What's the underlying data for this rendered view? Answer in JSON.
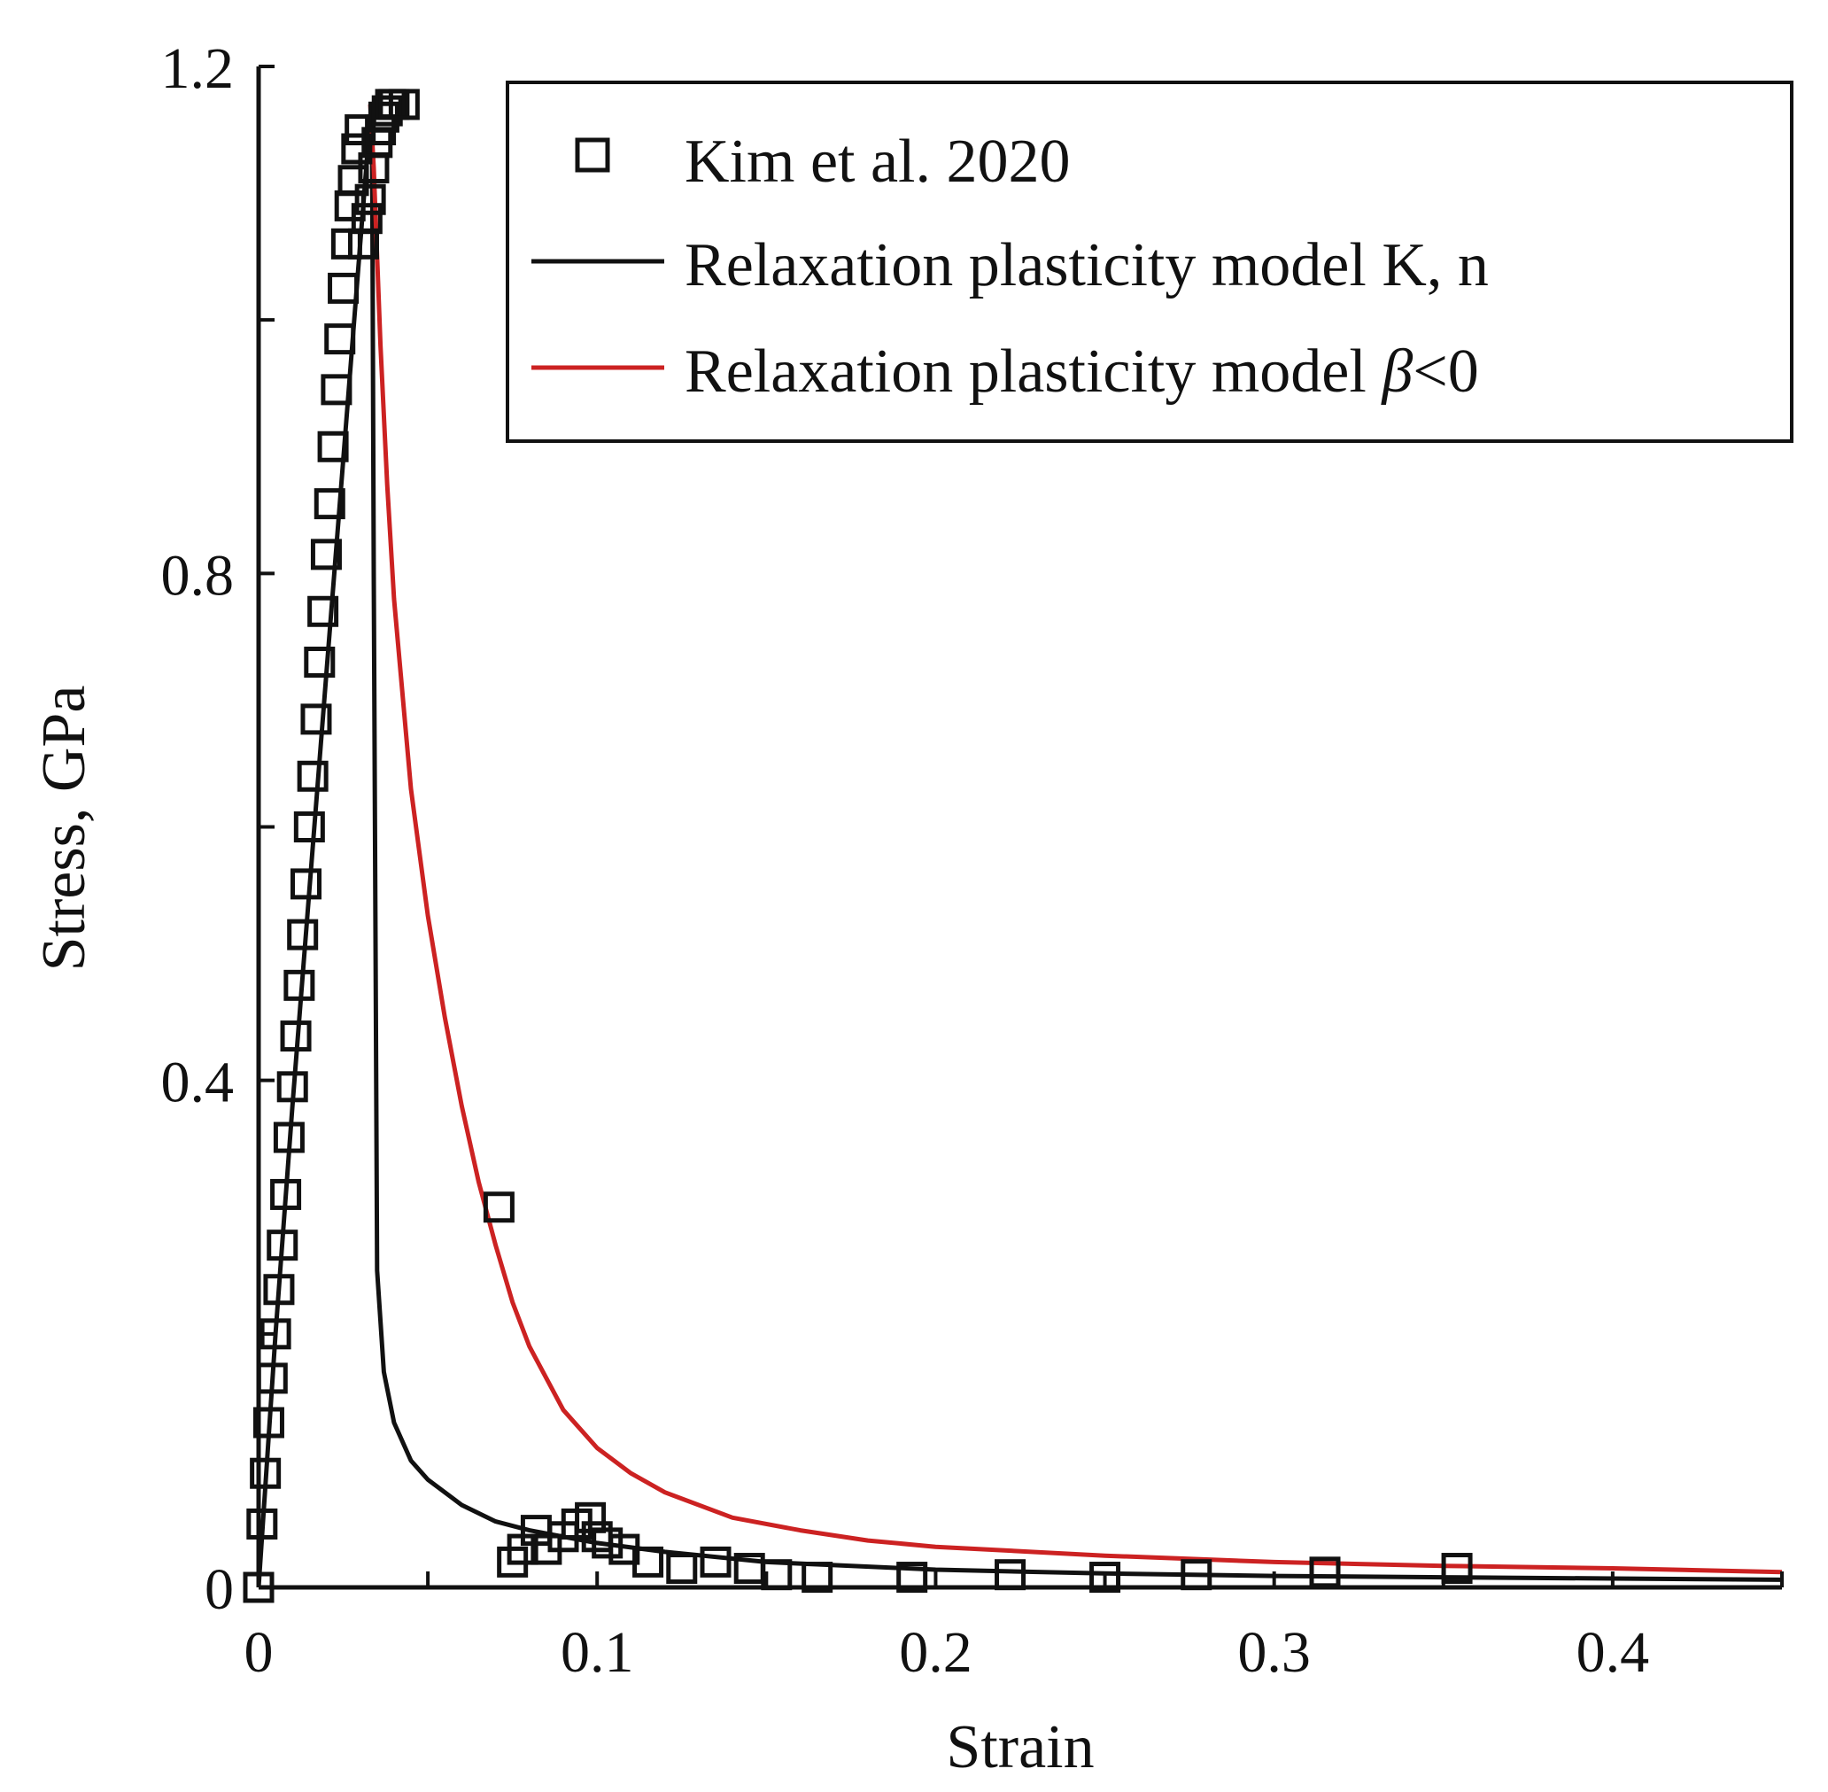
{
  "chart_data": {
    "type": "scatter",
    "title": "",
    "xlabel": "Strain",
    "ylabel": "Stress, GPa",
    "xlim": [
      0,
      0.45
    ],
    "ylim": [
      0,
      1.2
    ],
    "x_ticks": [
      0,
      0.1,
      0.2,
      0.3,
      0.4
    ],
    "x_tick_labels": [
      "0",
      "0.1",
      "0.2",
      "0.3",
      "0.4"
    ],
    "y_ticks": [
      0,
      0.4,
      0.8,
      1.2
    ],
    "y_tick_labels": [
      "0",
      "0.4",
      "0.8",
      "1.2"
    ],
    "grid": false,
    "legend_position": "top-right",
    "colors": {
      "axis": "#111111",
      "series_black": "#111111",
      "series_red": "#cc2222"
    },
    "series": [
      {
        "name": "Kim et al. 2020",
        "kind": "markers",
        "marker": "open-square",
        "color": "#111111",
        "x": [
          0.0,
          0.001,
          0.002,
          0.003,
          0.004,
          0.005,
          0.006,
          0.007,
          0.008,
          0.009,
          0.01,
          0.011,
          0.012,
          0.013,
          0.014,
          0.015,
          0.016,
          0.017,
          0.018,
          0.019,
          0.02,
          0.021,
          0.022,
          0.023,
          0.024,
          0.025,
          0.026,
          0.027,
          0.028,
          0.029,
          0.03,
          0.031,
          0.032,
          0.033,
          0.034,
          0.035,
          0.036,
          0.037,
          0.038,
          0.039,
          0.04,
          0.043,
          0.071,
          0.075,
          0.078,
          0.082,
          0.085,
          0.09,
          0.094,
          0.098,
          0.1,
          0.103,
          0.108,
          0.115,
          0.125,
          0.135,
          0.145,
          0.153,
          0.165,
          0.193,
          0.222,
          0.25,
          0.277,
          0.315,
          0.354
        ],
        "y": [
          0.0,
          0.05,
          0.09,
          0.13,
          0.165,
          0.2,
          0.235,
          0.27,
          0.31,
          0.355,
          0.395,
          0.435,
          0.475,
          0.515,
          0.555,
          0.6,
          0.64,
          0.685,
          0.73,
          0.77,
          0.815,
          0.855,
          0.9,
          0.945,
          0.985,
          1.025,
          1.06,
          1.09,
          1.11,
          1.135,
          1.15,
          1.06,
          1.08,
          1.095,
          1.12,
          1.14,
          1.15,
          1.16,
          1.165,
          1.17,
          1.17,
          1.17,
          0.3,
          0.02,
          0.03,
          0.045,
          0.03,
          0.04,
          0.05,
          0.055,
          0.04,
          0.035,
          0.03,
          0.02,
          0.015,
          0.02,
          0.015,
          0.01,
          0.008,
          0.008,
          0.01,
          0.008,
          0.01,
          0.012,
          0.015
        ]
      },
      {
        "name": "Relaxation plasticity model K, n",
        "kind": "line",
        "color": "#111111",
        "x": [
          0.0,
          0.005,
          0.01,
          0.015,
          0.02,
          0.025,
          0.03,
          0.033,
          0.0335,
          0.034,
          0.035,
          0.037,
          0.04,
          0.045,
          0.05,
          0.06,
          0.07,
          0.08,
          0.09,
          0.1,
          0.12,
          0.15,
          0.2,
          0.25,
          0.3,
          0.35,
          0.4,
          0.45
        ],
        "y": [
          0.0,
          0.2,
          0.38,
          0.55,
          0.72,
          0.89,
          1.06,
          1.16,
          1.17,
          0.8,
          0.25,
          0.17,
          0.13,
          0.1,
          0.085,
          0.065,
          0.052,
          0.045,
          0.04,
          0.035,
          0.028,
          0.02,
          0.014,
          0.011,
          0.009,
          0.008,
          0.007,
          0.006
        ]
      },
      {
        "name_text": "Relaxation plasticity model ",
        "name_symbol": "β",
        "name_suffix": "<0",
        "kind": "line",
        "color": "#cc2222",
        "x": [
          0.033,
          0.034,
          0.035,
          0.036,
          0.038,
          0.04,
          0.045,
          0.05,
          0.055,
          0.06,
          0.065,
          0.07,
          0.075,
          0.08,
          0.09,
          0.1,
          0.11,
          0.12,
          0.14,
          0.16,
          0.18,
          0.2,
          0.25,
          0.3,
          0.35,
          0.4,
          0.45
        ],
        "y": [
          1.17,
          1.12,
          1.05,
          0.98,
          0.87,
          0.78,
          0.63,
          0.53,
          0.45,
          0.38,
          0.32,
          0.27,
          0.225,
          0.19,
          0.14,
          0.11,
          0.09,
          0.075,
          0.055,
          0.045,
          0.037,
          0.032,
          0.025,
          0.02,
          0.017,
          0.015,
          0.012
        ]
      }
    ]
  }
}
